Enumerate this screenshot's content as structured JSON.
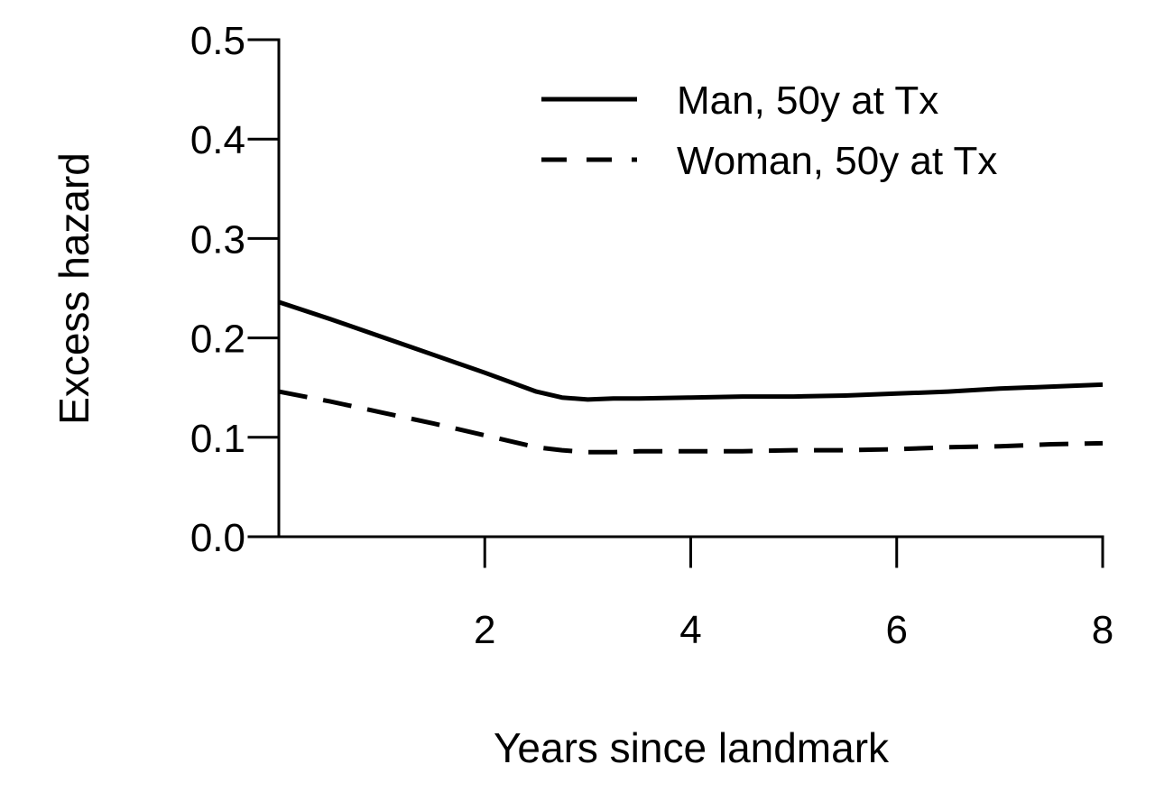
{
  "chart_data": {
    "type": "line",
    "title": "",
    "xlabel": "Years since landmark",
    "ylabel": "Excess hazard",
    "xlim": [
      0,
      8
    ],
    "ylim": [
      0,
      0.5
    ],
    "x_ticks": [
      2,
      4,
      6,
      8
    ],
    "x_tick_labels": [
      "2",
      "4",
      "6",
      "8"
    ],
    "y_ticks": [
      0,
      0.1,
      0.2,
      0.3,
      0.4,
      0.5
    ],
    "y_tick_labels": [
      "0.0",
      "0.1",
      "0.2",
      "0.3",
      "0.4",
      "0.5"
    ],
    "grid": false,
    "legend_position": "top-right",
    "series": [
      {
        "name": "Man, 50y at Tx",
        "line_style": "solid",
        "color": "#000000",
        "x": [
          0,
          0.5,
          1,
          1.5,
          2,
          2.5,
          2.75,
          3,
          3.25,
          3.5,
          4,
          4.5,
          5,
          5.5,
          6,
          6.5,
          7,
          7.5,
          8
        ],
        "y": [
          0.236,
          0.219,
          0.201,
          0.183,
          0.165,
          0.146,
          0.14,
          0.138,
          0.139,
          0.139,
          0.14,
          0.141,
          0.141,
          0.142,
          0.144,
          0.146,
          0.149,
          0.151,
          0.153
        ]
      },
      {
        "name": "Woman, 50y at Tx",
        "line_style": "dashed",
        "color": "#000000",
        "x": [
          0,
          0.5,
          1,
          1.5,
          2,
          2.5,
          2.75,
          3,
          3.25,
          3.5,
          4,
          4.5,
          5,
          5.5,
          6,
          6.5,
          7,
          7.5,
          8
        ],
        "y": [
          0.146,
          0.136,
          0.125,
          0.114,
          0.102,
          0.09,
          0.087,
          0.085,
          0.085,
          0.086,
          0.086,
          0.086,
          0.087,
          0.087,
          0.088,
          0.09,
          0.091,
          0.093,
          0.094
        ]
      }
    ]
  }
}
